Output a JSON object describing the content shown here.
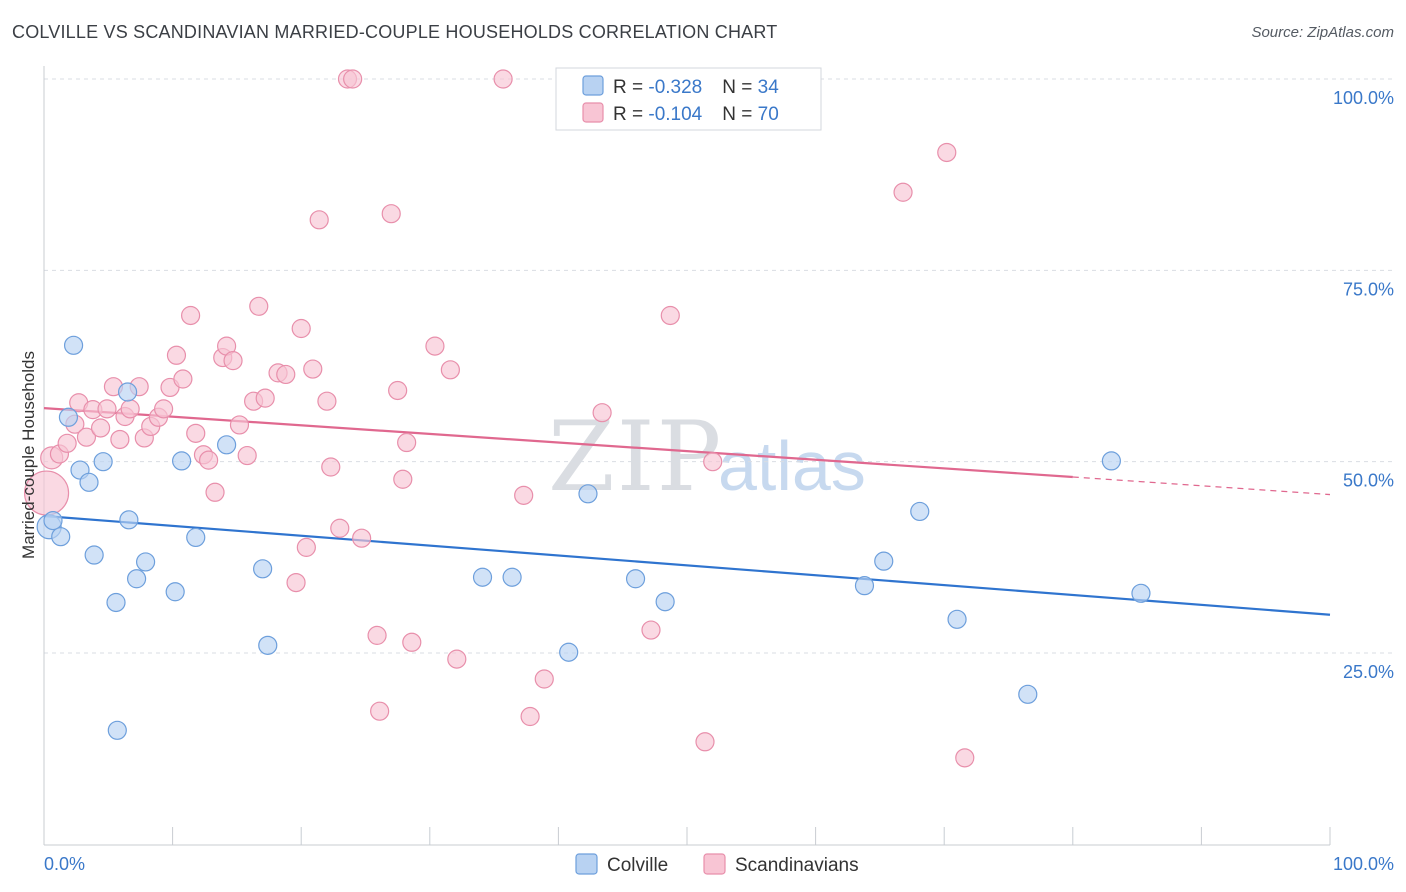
{
  "header": {
    "title": "COLVILLE VS SCANDINAVIAN MARRIED-COUPLE HOUSEHOLDS CORRELATION CHART",
    "source": "Source: ZipAtlas.com"
  },
  "colors": {
    "colville_fill": "#b8d2f2",
    "colville_stroke": "#6d9fdc",
    "colville_line": "#2f74cf",
    "scand_fill": "#f8c5d4",
    "scand_stroke": "#e88fab",
    "scand_line": "#e0688f",
    "grid": "#d9dde3",
    "axis_text": "#3a78c9"
  },
  "watermark": {
    "zip": "ZIP",
    "atlas": "atlas"
  },
  "chart_data": {
    "type": "scatter",
    "title": "COLVILLE VS SCANDINAVIAN MARRIED-COUPLE HOUSEHOLDS CORRELATION CHART",
    "xlabel": "",
    "ylabel": "Married-couple Households",
    "xlim": [
      0,
      100
    ],
    "ylim": [
      0,
      105
    ],
    "x_tick_labels": {
      "min": "0.0%",
      "max": "100.0%"
    },
    "y_ticks": [
      {
        "value": 25,
        "label": "25.0%"
      },
      {
        "value": 50,
        "label": "50.0%"
      },
      {
        "value": 75,
        "label": "75.0%"
      },
      {
        "value": 100,
        "label": "100.0%"
      }
    ],
    "legend_position": "top-center",
    "series": [
      {
        "name": "Colville",
        "R": "-0.328",
        "N": "34",
        "trend": {
          "x0": 0,
          "y0": 42.9,
          "x1": 100,
          "y1": 30.0
        },
        "points": [
          [
            0.4,
            41.5,
            12
          ],
          [
            0.7,
            42.3,
            9
          ],
          [
            1.3,
            40.2,
            9
          ],
          [
            1.9,
            55.8,
            9
          ],
          [
            2.3,
            65.2,
            9
          ],
          [
            2.8,
            48.9,
            9
          ],
          [
            3.5,
            47.3,
            9
          ],
          [
            3.9,
            37.8,
            9
          ],
          [
            4.6,
            50.0,
            9
          ],
          [
            5.6,
            31.6,
            9
          ],
          [
            5.7,
            14.9,
            9
          ],
          [
            6.5,
            59.1,
            9
          ],
          [
            6.6,
            42.4,
            9
          ],
          [
            7.2,
            34.7,
            9
          ],
          [
            7.9,
            36.9,
            9
          ],
          [
            10.2,
            33.0,
            9
          ],
          [
            10.7,
            50.1,
            9
          ],
          [
            11.8,
            40.1,
            9
          ],
          [
            14.2,
            52.2,
            9
          ],
          [
            17.0,
            36.0,
            9
          ],
          [
            17.4,
            26.0,
            9
          ],
          [
            34.1,
            34.9,
            9
          ],
          [
            36.4,
            34.9,
            9
          ],
          [
            40.8,
            25.1,
            9
          ],
          [
            42.3,
            45.8,
            9
          ],
          [
            46.0,
            34.7,
            9
          ],
          [
            48.3,
            31.7,
            9
          ],
          [
            63.8,
            33.8,
            9
          ],
          [
            65.3,
            37.0,
            9
          ],
          [
            68.1,
            43.5,
            9
          ],
          [
            71.0,
            29.4,
            9
          ],
          [
            76.5,
            19.6,
            9
          ],
          [
            83.0,
            50.1,
            9
          ],
          [
            85.3,
            32.8,
            9
          ]
        ]
      },
      {
        "name": "Scandinavians",
        "R": "-0.104",
        "N": "70",
        "trend": {
          "x0": 0,
          "y0": 57.0,
          "x1": 80,
          "y1": 48.0,
          "dash_to_x": 100,
          "dash_to_y": 45.7
        },
        "points": [
          [
            0.2,
            45.9,
            22
          ],
          [
            0.6,
            50.5,
            11
          ],
          [
            1.2,
            51.0,
            9
          ],
          [
            1.8,
            52.4,
            9
          ],
          [
            2.4,
            54.9,
            9
          ],
          [
            2.7,
            57.7,
            9
          ],
          [
            3.3,
            53.2,
            9
          ],
          [
            3.8,
            56.8,
            9
          ],
          [
            4.4,
            54.4,
            9
          ],
          [
            4.9,
            56.9,
            9
          ],
          [
            5.4,
            59.8,
            9
          ],
          [
            5.9,
            52.9,
            9
          ],
          [
            6.3,
            55.9,
            9
          ],
          [
            6.7,
            56.9,
            9
          ],
          [
            7.4,
            59.8,
            9
          ],
          [
            7.8,
            53.1,
            9
          ],
          [
            8.3,
            54.6,
            9
          ],
          [
            8.9,
            55.8,
            9
          ],
          [
            9.3,
            56.9,
            9
          ],
          [
            9.8,
            59.7,
            9
          ],
          [
            10.3,
            63.9,
            9
          ],
          [
            10.8,
            60.8,
            9
          ],
          [
            11.4,
            69.1,
            9
          ],
          [
            11.8,
            53.7,
            9
          ],
          [
            12.4,
            50.9,
            9
          ],
          [
            12.8,
            50.2,
            9
          ],
          [
            13.3,
            46.0,
            9
          ],
          [
            13.9,
            63.6,
            9
          ],
          [
            14.2,
            65.1,
            9
          ],
          [
            14.7,
            63.2,
            9
          ],
          [
            15.2,
            54.8,
            9
          ],
          [
            15.8,
            50.8,
            9
          ],
          [
            16.3,
            57.9,
            9
          ],
          [
            16.7,
            70.3,
            9
          ],
          [
            17.2,
            58.3,
            9
          ],
          [
            18.2,
            61.6,
            9
          ],
          [
            18.8,
            61.4,
            9
          ],
          [
            19.6,
            34.2,
            9
          ],
          [
            20.0,
            67.4,
            9
          ],
          [
            20.4,
            38.8,
            9
          ],
          [
            20.9,
            62.1,
            9
          ],
          [
            21.4,
            81.6,
            9
          ],
          [
            22.0,
            57.9,
            9
          ],
          [
            22.3,
            49.3,
            9
          ],
          [
            23.0,
            41.3,
            9
          ],
          [
            23.6,
            100.0,
            9
          ],
          [
            24.0,
            100.0,
            9
          ],
          [
            24.7,
            40.0,
            9
          ],
          [
            25.9,
            27.3,
            9
          ],
          [
            26.1,
            17.4,
            9
          ],
          [
            27.0,
            82.4,
            9
          ],
          [
            27.5,
            59.3,
            9
          ],
          [
            27.9,
            47.7,
            9
          ],
          [
            28.2,
            52.5,
            9
          ],
          [
            28.6,
            26.4,
            9
          ],
          [
            30.4,
            65.1,
            9
          ],
          [
            31.6,
            62.0,
            9
          ],
          [
            32.1,
            24.2,
            9
          ],
          [
            35.7,
            100.0,
            9
          ],
          [
            37.3,
            45.6,
            9
          ],
          [
            37.8,
            16.7,
            9
          ],
          [
            38.9,
            21.6,
            9
          ],
          [
            43.4,
            56.4,
            9
          ],
          [
            47.2,
            28.0,
            9
          ],
          [
            48.7,
            69.1,
            9
          ],
          [
            51.4,
            13.4,
            9
          ],
          [
            52.0,
            50.0,
            9
          ],
          [
            66.8,
            85.2,
            9
          ],
          [
            70.2,
            90.4,
            9
          ],
          [
            71.6,
            11.3,
            9
          ]
        ]
      }
    ]
  }
}
